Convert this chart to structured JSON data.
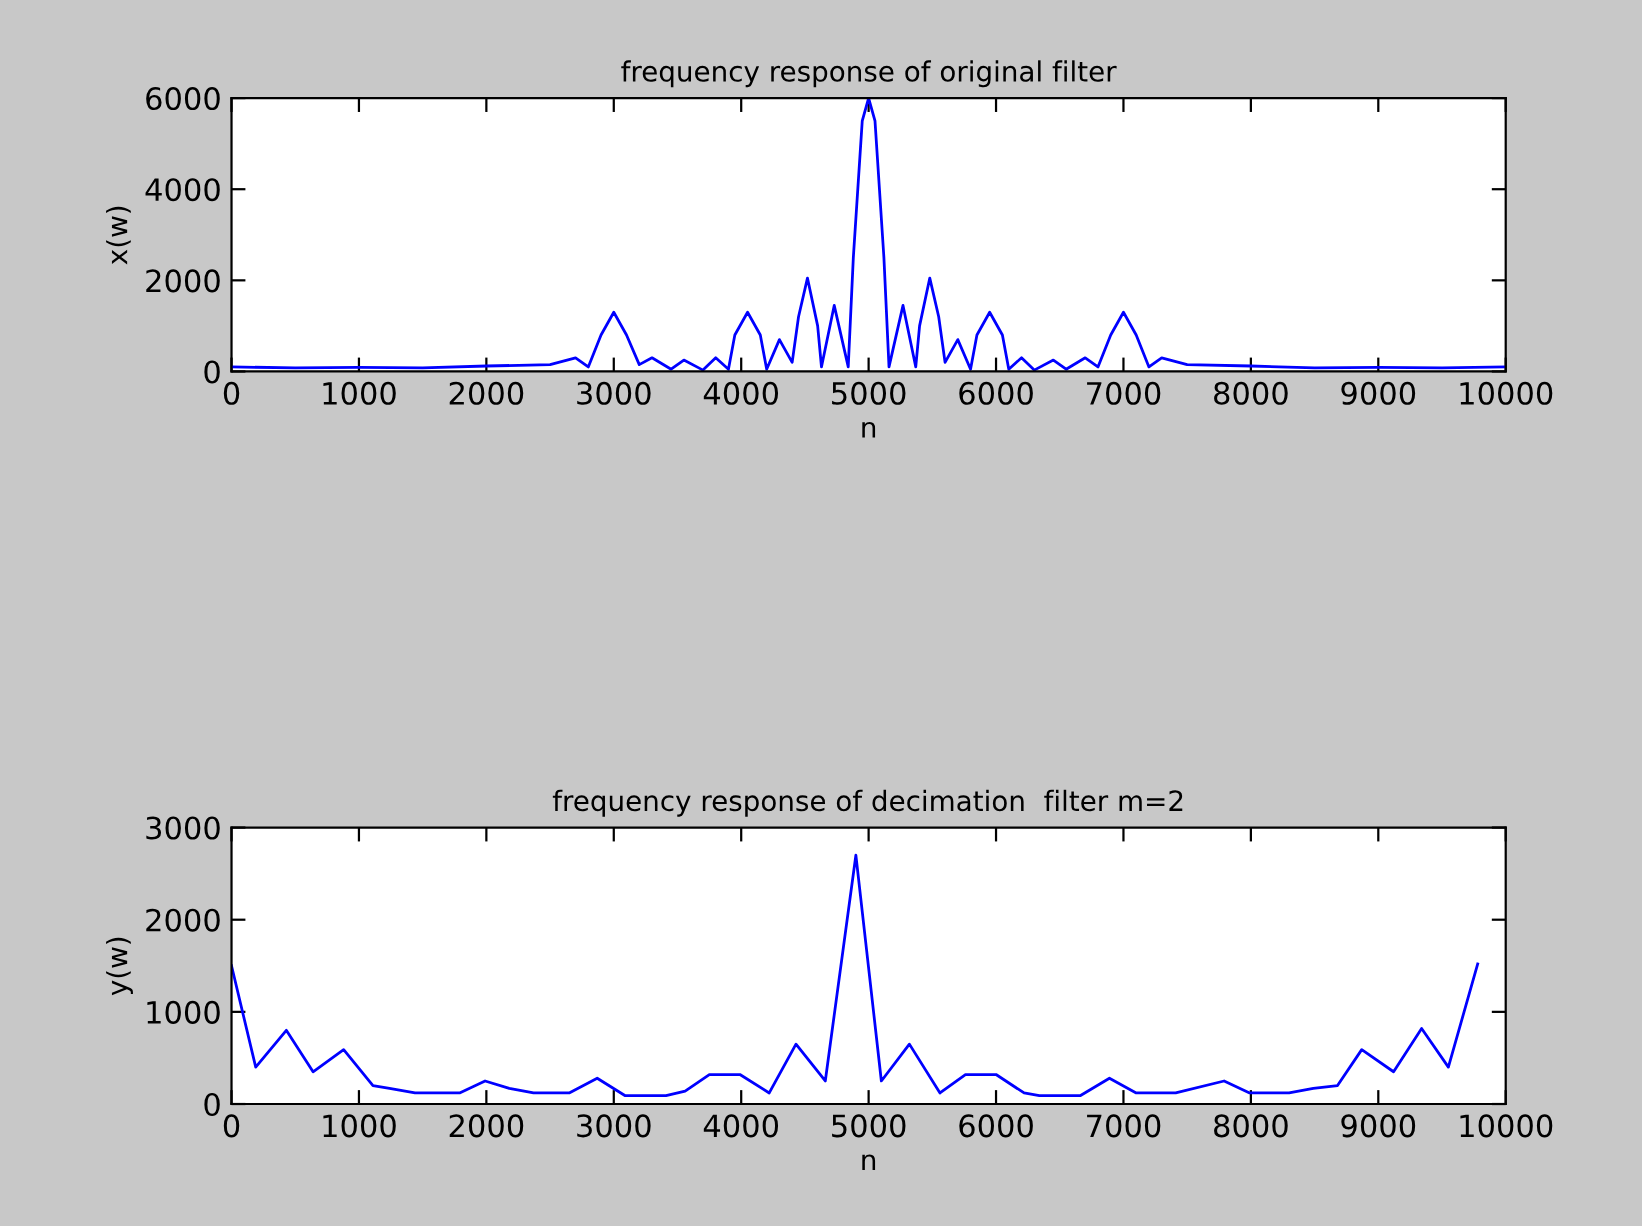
{
  "chart_data": [
    {
      "type": "line",
      "title": "frequency response of original filter",
      "xlabel": "n",
      "ylabel": "x(w)",
      "xlim": [
        0,
        10000
      ],
      "ylim": [
        0,
        6000
      ],
      "xticks": [
        0,
        1000,
        2000,
        3000,
        4000,
        5000,
        6000,
        7000,
        8000,
        9000,
        10000
      ],
      "yticks": [
        0,
        2000,
        4000,
        6000
      ],
      "grid": false,
      "legend": false,
      "series": [
        {
          "color": "#0000ff",
          "x": [
            0,
            500,
            1000,
            1500,
            2000,
            2500,
            2700,
            2800,
            2900,
            3000,
            3100,
            3200,
            3300,
            3450,
            3550,
            3700,
            3800,
            3900,
            3950,
            4050,
            4150,
            4200,
            4300,
            4400,
            4450,
            4520,
            4600,
            4630,
            4730,
            4840,
            4880,
            4950,
            5000,
            5050,
            5120,
            5160,
            5270,
            5370,
            5400,
            5480,
            5550,
            5600,
            5700,
            5800,
            5850,
            5950,
            6050,
            6100,
            6200,
            6300,
            6450,
            6550,
            6700,
            6800,
            6900,
            7000,
            7100,
            7200,
            7300,
            7500,
            8000,
            8500,
            9000,
            9500,
            10000
          ],
          "values": [
            100,
            80,
            90,
            80,
            120,
            150,
            300,
            100,
            800,
            1300,
            800,
            150,
            300,
            50,
            250,
            30,
            300,
            50,
            800,
            1300,
            800,
            50,
            700,
            200,
            1200,
            2050,
            1000,
            100,
            1450,
            100,
            2500,
            5500,
            6000,
            5500,
            2500,
            100,
            1450,
            100,
            1000,
            2050,
            1200,
            200,
            700,
            50,
            800,
            1300,
            800,
            50,
            300,
            30,
            250,
            50,
            300,
            100,
            800,
            1300,
            800,
            100,
            300,
            150,
            120,
            80,
            90,
            80,
            100
          ]
        }
      ]
    },
    {
      "type": "line",
      "title": "frequency response of decimation  filter m=2",
      "xlabel": "n",
      "ylabel": "y(w)",
      "xlim": [
        0,
        10000
      ],
      "ylim": [
        0,
        3000
      ],
      "xticks": [
        0,
        1000,
        2000,
        3000,
        4000,
        5000,
        6000,
        7000,
        8000,
        9000,
        10000
      ],
      "yticks": [
        0,
        1000,
        2000,
        3000
      ],
      "grid": false,
      "legend": false,
      "series": [
        {
          "color": "#0000ff",
          "x": [
            0,
            190,
            430,
            640,
            880,
            1110,
            1240,
            1440,
            1790,
            1990,
            2180,
            2370,
            2650,
            2870,
            3090,
            3410,
            3560,
            3750,
            3990,
            4220,
            4430,
            4660,
            4900,
            5100,
            5320,
            5560,
            5760,
            6000,
            6220,
            6340,
            6660,
            6890,
            7100,
            7410,
            7790,
            7990,
            8300,
            8490,
            8680,
            8870,
            9120,
            9340,
            9550,
            9780
          ],
          "values": [
            1500,
            400,
            800,
            350,
            590,
            200,
            170,
            120,
            120,
            250,
            170,
            120,
            120,
            280,
            90,
            90,
            140,
            320,
            320,
            120,
            650,
            250,
            2700,
            250,
            650,
            120,
            320,
            320,
            120,
            90,
            90,
            280,
            120,
            120,
            250,
            120,
            120,
            170,
            200,
            590,
            350,
            820,
            400,
            1520
          ]
        }
      ]
    }
  ]
}
